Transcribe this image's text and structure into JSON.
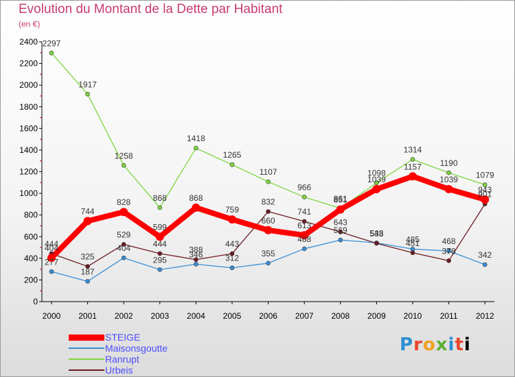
{
  "title": "Evolution du Montant de la Dette par Habitant",
  "subtitle": "(en €)",
  "brand": {
    "letters": [
      "P",
      "r",
      "o",
      "x",
      "i",
      "t",
      "i"
    ]
  },
  "chart_data": {
    "type": "line",
    "x": [
      "2000",
      "2001",
      "2002",
      "2003",
      "2004",
      "2005",
      "2006",
      "2007",
      "2008",
      "2009",
      "2010",
      "2011",
      "2012"
    ],
    "ylim": [
      0,
      2400
    ],
    "yticks": [
      "0",
      "200",
      "400",
      "600",
      "800",
      "1000",
      "1200",
      "1400",
      "1600",
      "1800",
      "2000",
      "2200",
      "2400"
    ],
    "grid": false,
    "legend_position": "bottom-left",
    "series": [
      {
        "name": "STEIGE",
        "color": "#ff0000",
        "values": [
          404,
          744,
          828,
          599,
          868,
          759,
          660,
          613,
          851,
          1039,
          1157,
          1039,
          943
        ],
        "labels": [
          "404",
          "744",
          "828",
          "599",
          "868",
          "759",
          "660",
          "613",
          "851",
          "1039",
          "1157",
          "1039",
          "943"
        ]
      },
      {
        "name": "Maisonsgoutte",
        "color": "#3a8fd8",
        "values": [
          277,
          187,
          404,
          295,
          346,
          312,
          355,
          488,
          569,
          543,
          485,
          468,
          342
        ],
        "labels": [
          "277",
          "187",
          "404",
          "295",
          "346",
          "312",
          "355",
          "488",
          "569",
          "543",
          "485",
          "468",
          "342"
        ]
      },
      {
        "name": "Ranrupt",
        "color": "#7ed640",
        "values": [
          2297,
          1917,
          1258,
          868,
          1418,
          1265,
          1107,
          966,
          861,
          1098,
          1314,
          1190,
          1079
        ],
        "labels": [
          "2297",
          "1917",
          "1258",
          "868",
          "1418",
          "1265",
          "1107",
          "966",
          "861",
          "1098",
          "1314",
          "1190",
          "1079"
        ]
      },
      {
        "name": "Urbeis",
        "color": "#6e1b22",
        "values": [
          444,
          325,
          529,
          444,
          388,
          443,
          832,
          741,
          643,
          538,
          451,
          378,
          901
        ],
        "labels": [
          "444",
          "325",
          "529",
          "444",
          "388",
          "443",
          "832",
          "741",
          "643",
          "538",
          "451",
          "378",
          "901"
        ]
      }
    ]
  }
}
